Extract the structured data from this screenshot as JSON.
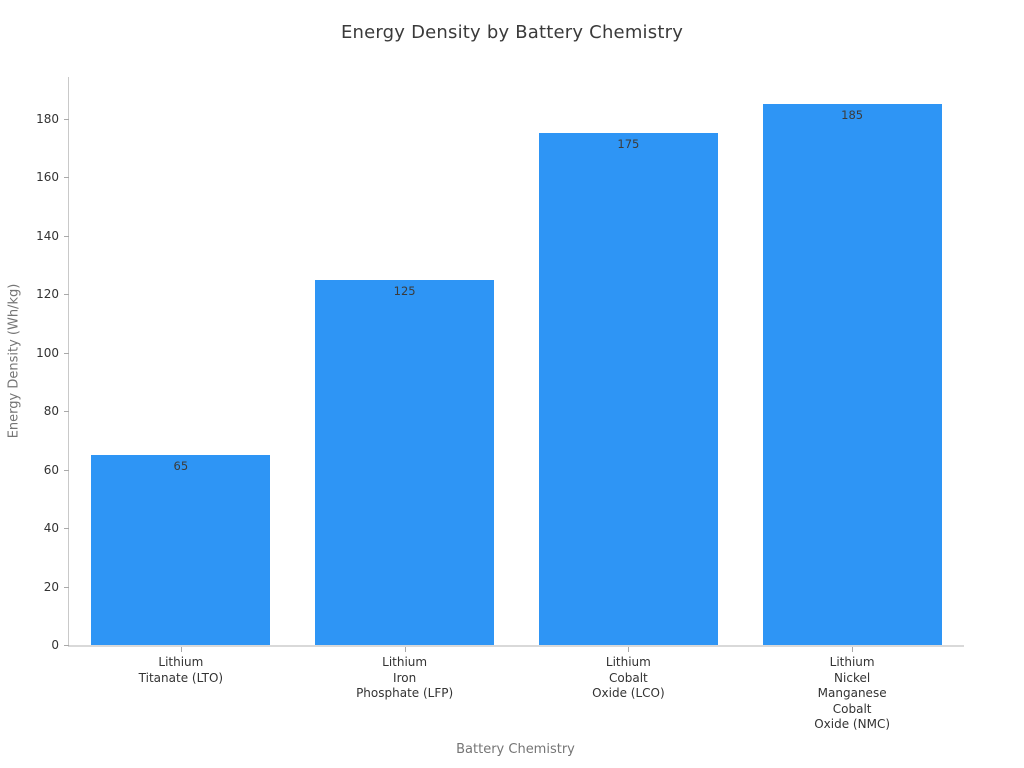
{
  "chart_data": {
    "type": "bar",
    "title": "Energy Density by Battery Chemistry",
    "xlabel": "Battery Chemistry",
    "ylabel": "Energy Density (Wh/kg)",
    "categories": [
      [
        "Lithium",
        "Titanate (LTO)"
      ],
      [
        "Lithium",
        "Iron",
        "Phosphate (LFP)"
      ],
      [
        "Lithium",
        "Cobalt",
        "Oxide (LCO)"
      ],
      [
        "Lithium",
        "Nickel",
        "Manganese",
        "Cobalt",
        "Oxide (NMC)"
      ]
    ],
    "category_ids": [
      "lto",
      "lfp",
      "lco",
      "nmc"
    ],
    "values": [
      65,
      125,
      175,
      185
    ],
    "bar_value_labels": [
      "65",
      "125",
      "175",
      "185"
    ],
    "yticks": [
      0,
      20,
      40,
      60,
      80,
      100,
      120,
      140,
      160,
      180
    ],
    "ylim": [
      0,
      194.25
    ],
    "grid": false,
    "legend": false,
    "colors": {
      "bar": "#2E95F5",
      "title_text": "#3a3a3a",
      "tick_text": "#333333",
      "axis_title_text": "#757575",
      "bar_value_text": "#3b3b3b",
      "spine": "#c9c9c9"
    }
  }
}
